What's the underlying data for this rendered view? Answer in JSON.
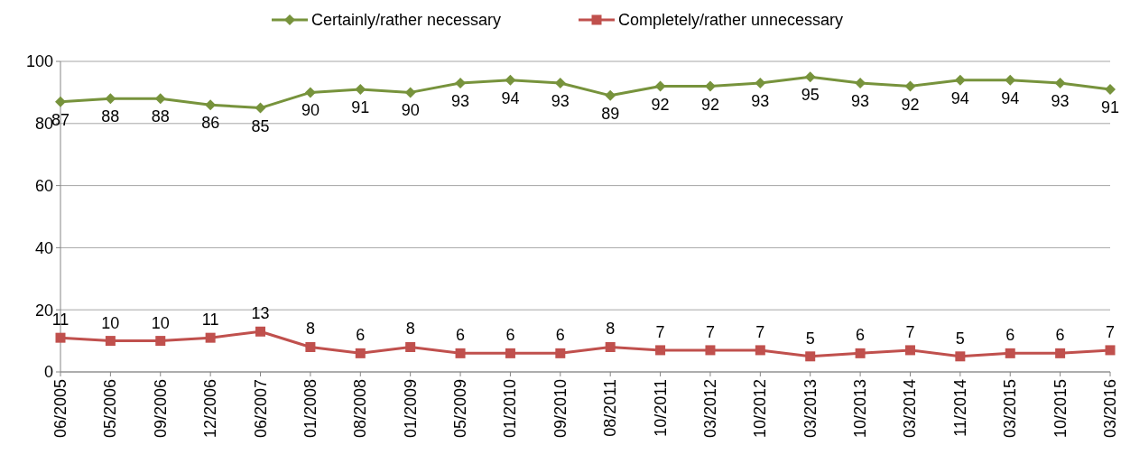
{
  "chart_data": {
    "type": "line",
    "categories": [
      "06/2005",
      "05/2006",
      "09/2006",
      "12/2006",
      "06/2007",
      "01/2008",
      "08/2008",
      "01/2009",
      "05/2009",
      "01/2010",
      "09/2010",
      "08/2011",
      "10/2011",
      "03/2012",
      "10/2012",
      "03/2013",
      "10/2013",
      "03/2014",
      "11/2014",
      "03/2015",
      "10/2015",
      "03/2016"
    ],
    "series": [
      {
        "name": "Certainly/rather necessary",
        "color": "#77933c",
        "marker": "diamond",
        "values": [
          87,
          88,
          88,
          86,
          85,
          90,
          91,
          90,
          93,
          94,
          93,
          89,
          92,
          92,
          93,
          95,
          93,
          92,
          94,
          94,
          93,
          91
        ]
      },
      {
        "name": "Completely/rather unnecessary",
        "color": "#c0504d",
        "marker": "square",
        "values": [
          11,
          10,
          10,
          11,
          13,
          8,
          6,
          8,
          6,
          6,
          6,
          8,
          7,
          7,
          7,
          5,
          6,
          7,
          5,
          6,
          6,
          7
        ]
      }
    ],
    "ylim": [
      0,
      100
    ],
    "yticks": [
      0,
      20,
      40,
      60,
      80,
      100
    ],
    "grid": "y",
    "legend": "top",
    "data_labels": true
  }
}
